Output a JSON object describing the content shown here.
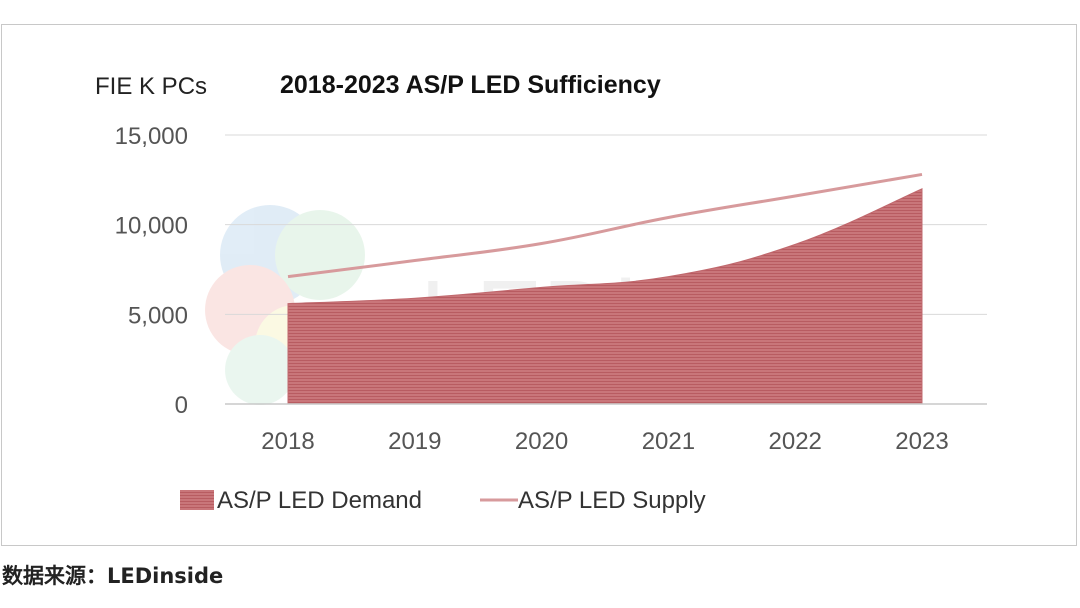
{
  "chart_data": {
    "type": "area",
    "title": "2018-2023 AS/P LED Sufficiency",
    "ylabel": "FIE K PCs",
    "xlabel": "",
    "ylim": [
      0,
      15000
    ],
    "yticks": [
      0,
      5000,
      10000,
      15000
    ],
    "ytick_labels": [
      "0",
      "5,000",
      "10,000",
      "15,000"
    ],
    "categories": [
      "2018",
      "2019",
      "2020",
      "2021",
      "2022",
      "2023"
    ],
    "series": [
      {
        "name": "AS/P LED Demand",
        "kind": "area",
        "values": [
          5600,
          5900,
          6500,
          7100,
          8900,
          12000
        ],
        "color": "#c9767a"
      },
      {
        "name": "AS/P LED Supply",
        "kind": "line",
        "values": [
          7100,
          8000,
          8950,
          10400,
          11600,
          12800
        ],
        "color": "#d79a9c"
      }
    ],
    "grid": true,
    "legend": "bottom-left",
    "watermark": "LEDinside"
  },
  "source": {
    "label": "数据来源：",
    "value": "LEDinside"
  }
}
